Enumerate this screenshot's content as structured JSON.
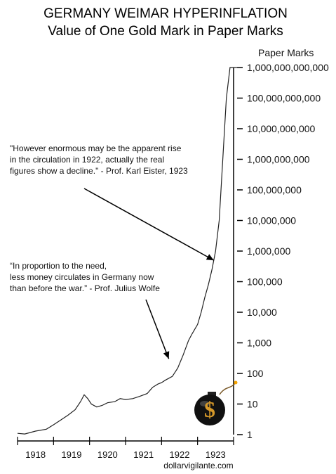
{
  "chart_data": {
    "type": "line",
    "title": "GERMANY WEIMAR HYPERINFLATION",
    "subtitle": "Value of One Gold Mark in Paper Marks",
    "ylabel": "Paper Marks",
    "yscale": "log",
    "ylim": [
      1,
      1000000000000
    ],
    "ytick_labels": [
      "1",
      "10",
      "100",
      "1,000",
      "10,000",
      "100,000",
      "1,000,000",
      "10,000,000",
      "100,000,000",
      "1,000,000,000",
      "10,000,000,000",
      "100,000,000,000",
      "1,000,000,000,000"
    ],
    "xtick_labels": [
      "1918",
      "1919",
      "1920",
      "1921",
      "1922",
      "1923"
    ],
    "xlim": [
      1918.0,
      1924.0
    ],
    "grid": false,
    "series": [
      {
        "x": [
          1918.0,
          1918.2,
          1918.5,
          1918.8,
          1919.0,
          1919.2,
          1919.4,
          1919.6,
          1919.75,
          1919.85,
          1919.95,
          1920.05,
          1920.2,
          1920.35,
          1920.5,
          1920.7,
          1920.85,
          1921.0,
          1921.2,
          1921.4,
          1921.6,
          1921.75,
          1921.9,
          1922.0,
          1922.1,
          1922.3,
          1922.45,
          1922.6,
          1922.75,
          1922.85,
          1923.0,
          1923.1,
          1923.2,
          1923.3,
          1923.4,
          1923.5,
          1923.6,
          1923.7,
          1923.8,
          1923.9,
          1924.0
        ],
        "y": [
          1.1,
          1.05,
          1.3,
          1.5,
          2.1,
          3.0,
          4.3,
          6.5,
          12,
          20,
          15,
          10,
          8,
          9,
          11,
          12,
          15,
          14,
          15,
          18,
          22,
          35,
          45,
          50,
          60,
          80,
          150,
          400,
          1200,
          2000,
          4000,
          10000,
          30000,
          80000,
          250000,
          1000000,
          10000000,
          1000000000,
          100000000000,
          1000000000000,
          1000000000000
        ]
      }
    ],
    "annotations": [
      {
        "lines": [
          "\"However enormous may be the apparent rise",
          "in the circulation in 1922, actually the real",
          "figures show a decline.\" - Prof. Karl Eister, 1923"
        ],
        "arrow_to": {
          "x": 1923.45,
          "y": 500000
        }
      },
      {
        "lines": [
          "“In proportion to the need,",
          "less money circulates in Germany now",
          "than before the war.” - Prof. Julius Wolfe"
        ],
        "arrow_to": {
          "x": 1922.2,
          "y": 300
        }
      }
    ],
    "credit": "dollarvigilante.com",
    "icon": "dollar-bomb-icon"
  }
}
